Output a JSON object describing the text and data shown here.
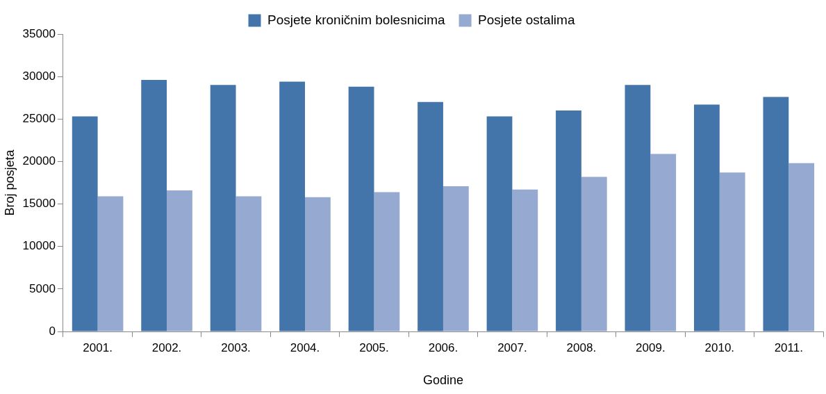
{
  "chart_data": {
    "type": "bar",
    "xlabel": "Godine",
    "ylabel": "Broj posjeta",
    "categories": [
      "2001.",
      "2002.",
      "2003.",
      "2004.",
      "2005.",
      "2006.",
      "2007.",
      "2008.",
      "2009.",
      "2010.",
      "2011."
    ],
    "series": [
      {
        "name": "Posjete kroničnim bolesnicima",
        "color": "#4374aa",
        "values": [
          25300,
          29600,
          29000,
          29400,
          28800,
          27000,
          25300,
          26000,
          29000,
          26700,
          27600
        ]
      },
      {
        "name": "Posjete ostalima",
        "color": "#95a9d1",
        "values": [
          15900,
          16600,
          15900,
          15800,
          16400,
          17100,
          16700,
          18200,
          20900,
          18700,
          19800
        ]
      }
    ],
    "ylim": [
      0,
      35000
    ],
    "yticks": [
      0,
      5000,
      10000,
      15000,
      20000,
      25000,
      30000,
      35000
    ],
    "grid": false,
    "legend": "top"
  }
}
